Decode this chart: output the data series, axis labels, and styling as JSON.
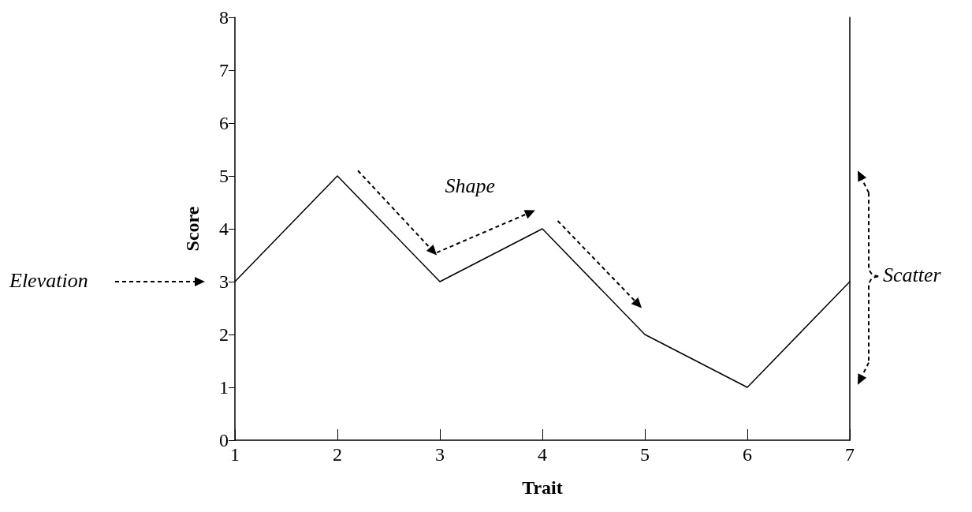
{
  "chart_data": {
    "type": "line",
    "xlabel": "Trait",
    "ylabel": "Score",
    "x": [
      1,
      2,
      3,
      4,
      5,
      6,
      7
    ],
    "series": [
      {
        "color": "#000000",
        "values": [
          3,
          5,
          3,
          4,
          2,
          1,
          3
        ]
      }
    ],
    "xlim": [
      1,
      7
    ],
    "xticks": [
      1,
      2,
      3,
      4,
      5,
      6,
      7
    ],
    "ylim": [
      0,
      8
    ],
    "yticks": [
      0,
      1,
      2,
      3,
      4,
      5,
      6,
      7,
      8
    ],
    "grid": false,
    "marker": "none",
    "line_style": "solid",
    "annotations": [
      "Elevation",
      "Shape",
      "Scatter"
    ]
  }
}
